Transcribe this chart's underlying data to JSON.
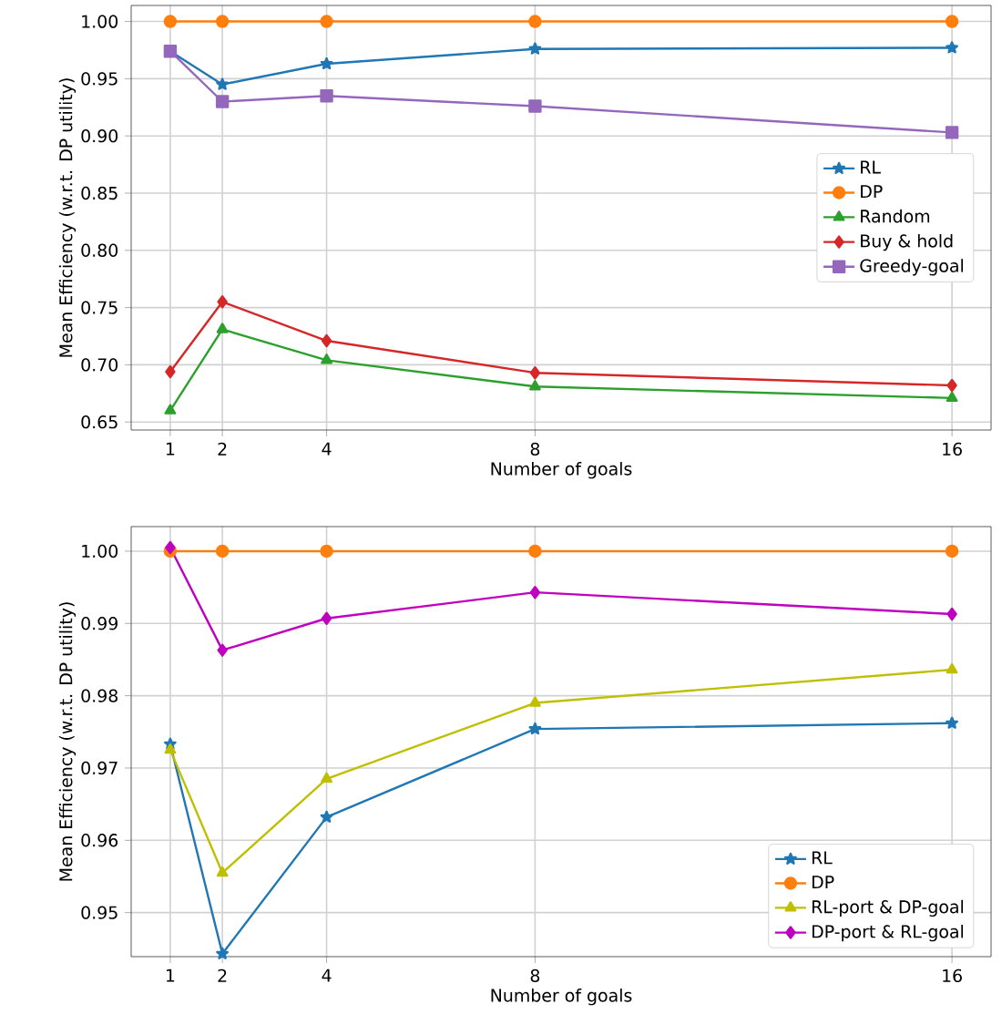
{
  "chart_data": [
    {
      "type": "line",
      "xlabel": "Number of goals",
      "ylabel": "Mean Efficiency (w.r.t. DP utility)",
      "x": [
        1,
        2,
        4,
        8,
        16
      ],
      "xlim": [
        0.25,
        16.75
      ],
      "xticks": [
        1,
        2,
        4,
        8,
        16
      ],
      "ylim": [
        0.643,
        1.014
      ],
      "yticks": [
        0.65,
        {
          "value": 0.7,
          "label": "0.70"
        },
        0.75,
        {
          "value": 0.8,
          "label": "0.80"
        },
        0.85,
        {
          "value": 0.9,
          "label": "0.90"
        },
        0.95,
        {
          "value": 1.0,
          "label": "1.00"
        }
      ],
      "grid": true,
      "legend": "right",
      "line_style": "solid",
      "series": [
        {
          "name": "RL",
          "color": "#1f77b4",
          "marker": "star",
          "values": [
            0.974,
            0.945,
            0.963,
            0.976,
            0.977
          ]
        },
        {
          "name": "DP",
          "color": "#ff7f0e",
          "marker": "circle",
          "values": [
            1.0,
            1.0,
            1.0,
            1.0,
            1.0
          ]
        },
        {
          "name": "Random",
          "color": "#2ca02c",
          "marker": "triangle",
          "values": [
            0.66,
            0.731,
            0.704,
            0.681,
            0.671
          ]
        },
        {
          "name": "Buy & hold",
          "color": "#d62728",
          "marker": "diamond",
          "values": [
            0.694,
            0.755,
            0.721,
            0.693,
            0.682
          ]
        },
        {
          "name": "Greedy-goal",
          "color": "#9467bd",
          "marker": "square",
          "values": [
            0.974,
            0.93,
            0.935,
            0.926,
            0.903
          ]
        }
      ]
    },
    {
      "type": "line",
      "xlabel": "Number of goals",
      "ylabel": "Mean Efficiency (w.r.t. DP utility)",
      "x": [
        1,
        2,
        4,
        8,
        16
      ],
      "xlim": [
        0.25,
        16.75
      ],
      "xticks": [
        1,
        2,
        4,
        8,
        16
      ],
      "ylim": [
        0.9439,
        1.0034
      ],
      "yticks": [
        0.95,
        0.96,
        0.97,
        0.98,
        0.99,
        {
          "value": 1.0,
          "label": "1.00"
        }
      ],
      "grid": true,
      "legend": "bottom right",
      "line_style": "solid",
      "series": [
        {
          "name": "RL",
          "color": "#1f77b4",
          "marker": "star",
          "values": [
            0.9733,
            0.9443,
            0.9632,
            0.9754,
            0.9762
          ]
        },
        {
          "name": "DP",
          "color": "#ff7f0e",
          "marker": "circle",
          "values": [
            1.0,
            1.0,
            1.0,
            1.0,
            1.0
          ]
        },
        {
          "name": "RL-port & DP-goal",
          "color": "#bfbf00",
          "marker": "triangle",
          "values": [
            0.9725,
            0.9555,
            0.9685,
            0.979,
            0.9836
          ]
        },
        {
          "name": "DP-port & RL-goal",
          "color": "#bf00bf",
          "marker": "diamond",
          "values": [
            1.0005,
            0.9863,
            0.9907,
            0.9943,
            0.9913
          ]
        }
      ]
    }
  ]
}
